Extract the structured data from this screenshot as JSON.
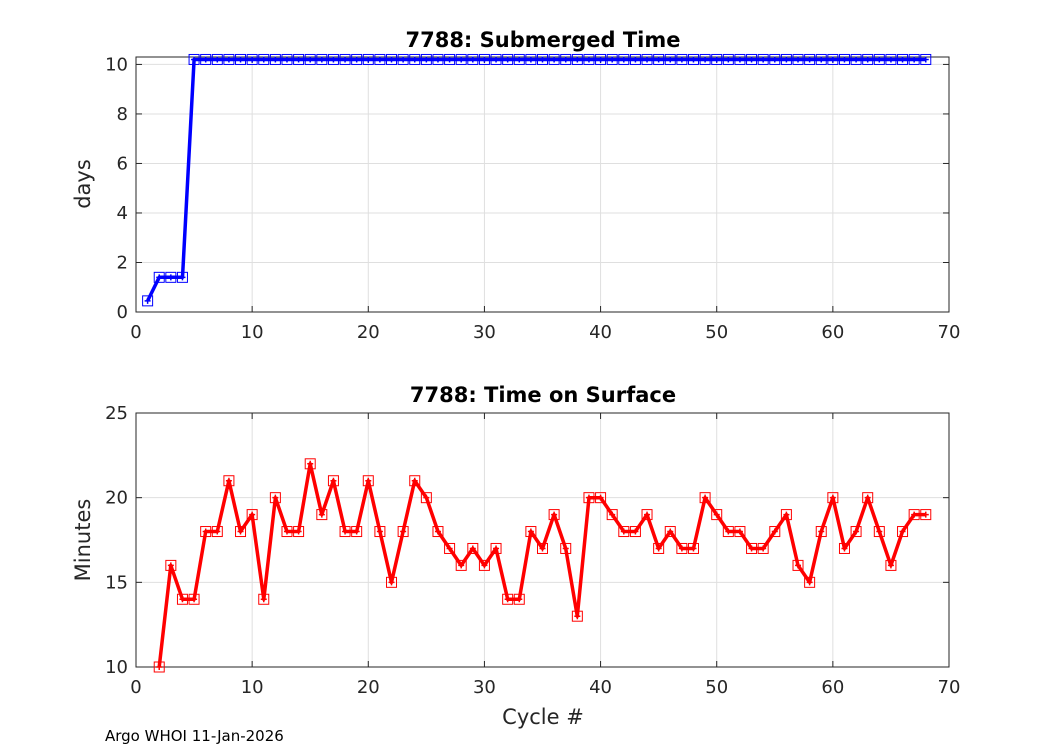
{
  "chart_data": [
    {
      "type": "line",
      "title": "7788: Submerged Time",
      "xlabel": "",
      "ylabel": "days",
      "xlim": [
        0,
        70
      ],
      "ylim": [
        0,
        10.3
      ],
      "xticks": [
        0,
        10,
        20,
        30,
        40,
        50,
        60,
        70
      ],
      "yticks": [
        0,
        2,
        4,
        6,
        8,
        10
      ],
      "grid": true,
      "color": "#0000ff",
      "marker": "square",
      "x": [
        1,
        2,
        3,
        4,
        5,
        6,
        7,
        8,
        9,
        10,
        11,
        12,
        13,
        14,
        15,
        16,
        17,
        18,
        19,
        20,
        21,
        22,
        23,
        24,
        25,
        26,
        27,
        28,
        29,
        30,
        31,
        32,
        33,
        34,
        35,
        36,
        37,
        38,
        39,
        40,
        41,
        42,
        43,
        44,
        45,
        46,
        47,
        48,
        49,
        50,
        51,
        52,
        53,
        54,
        55,
        56,
        57,
        58,
        59,
        60,
        61,
        62,
        63,
        64,
        65,
        66,
        67,
        68
      ],
      "y": [
        0.45,
        1.4,
        1.4,
        1.4,
        10.2,
        10.2,
        10.2,
        10.2,
        10.2,
        10.2,
        10.2,
        10.2,
        10.2,
        10.2,
        10.2,
        10.2,
        10.2,
        10.2,
        10.2,
        10.2,
        10.2,
        10.2,
        10.2,
        10.2,
        10.2,
        10.2,
        10.2,
        10.2,
        10.2,
        10.2,
        10.2,
        10.2,
        10.2,
        10.2,
        10.2,
        10.2,
        10.2,
        10.2,
        10.2,
        10.2,
        10.2,
        10.2,
        10.2,
        10.2,
        10.2,
        10.2,
        10.2,
        10.2,
        10.2,
        10.2,
        10.2,
        10.2,
        10.2,
        10.2,
        10.2,
        10.2,
        10.2,
        10.2,
        10.2,
        10.2,
        10.2,
        10.2,
        10.2,
        10.2,
        10.2,
        10.2,
        10.2,
        10.2
      ]
    },
    {
      "type": "line",
      "title": "7788: Time on Surface",
      "xlabel": "Cycle #",
      "ylabel": "Minutes",
      "xlim": [
        0,
        70
      ],
      "ylim": [
        10,
        25
      ],
      "xticks": [
        0,
        10,
        20,
        30,
        40,
        50,
        60,
        70
      ],
      "yticks": [
        10,
        15,
        20,
        25
      ],
      "grid": true,
      "color": "#ff0000",
      "marker": "square",
      "x": [
        2,
        3,
        4,
        5,
        6,
        7,
        8,
        9,
        10,
        11,
        12,
        13,
        14,
        15,
        16,
        17,
        18,
        19,
        20,
        21,
        22,
        23,
        24,
        25,
        26,
        27,
        28,
        29,
        30,
        31,
        32,
        33,
        34,
        35,
        36,
        37,
        38,
        39,
        40,
        41,
        42,
        43,
        44,
        45,
        46,
        47,
        48,
        49,
        50,
        51,
        52,
        53,
        54,
        55,
        56,
        57,
        58,
        59,
        60,
        61,
        62,
        63,
        64,
        65,
        66,
        67,
        68
      ],
      "y": [
        10,
        16,
        14,
        14,
        18,
        18,
        21,
        18,
        19,
        14,
        20,
        18,
        18,
        22,
        19,
        21,
        18,
        18,
        21,
        18,
        15,
        18,
        21,
        20,
        18,
        17,
        16,
        17,
        16,
        17,
        14,
        14,
        18,
        17,
        19,
        17,
        13,
        20,
        20,
        19,
        18,
        18,
        19,
        17,
        18,
        17,
        17,
        20,
        19,
        18,
        18,
        17,
        17,
        18,
        19,
        16,
        15,
        18,
        20,
        17,
        18,
        20,
        18,
        16,
        18,
        19,
        19
      ]
    }
  ],
  "footer": "Argo WHOI 11-Jan-2026"
}
